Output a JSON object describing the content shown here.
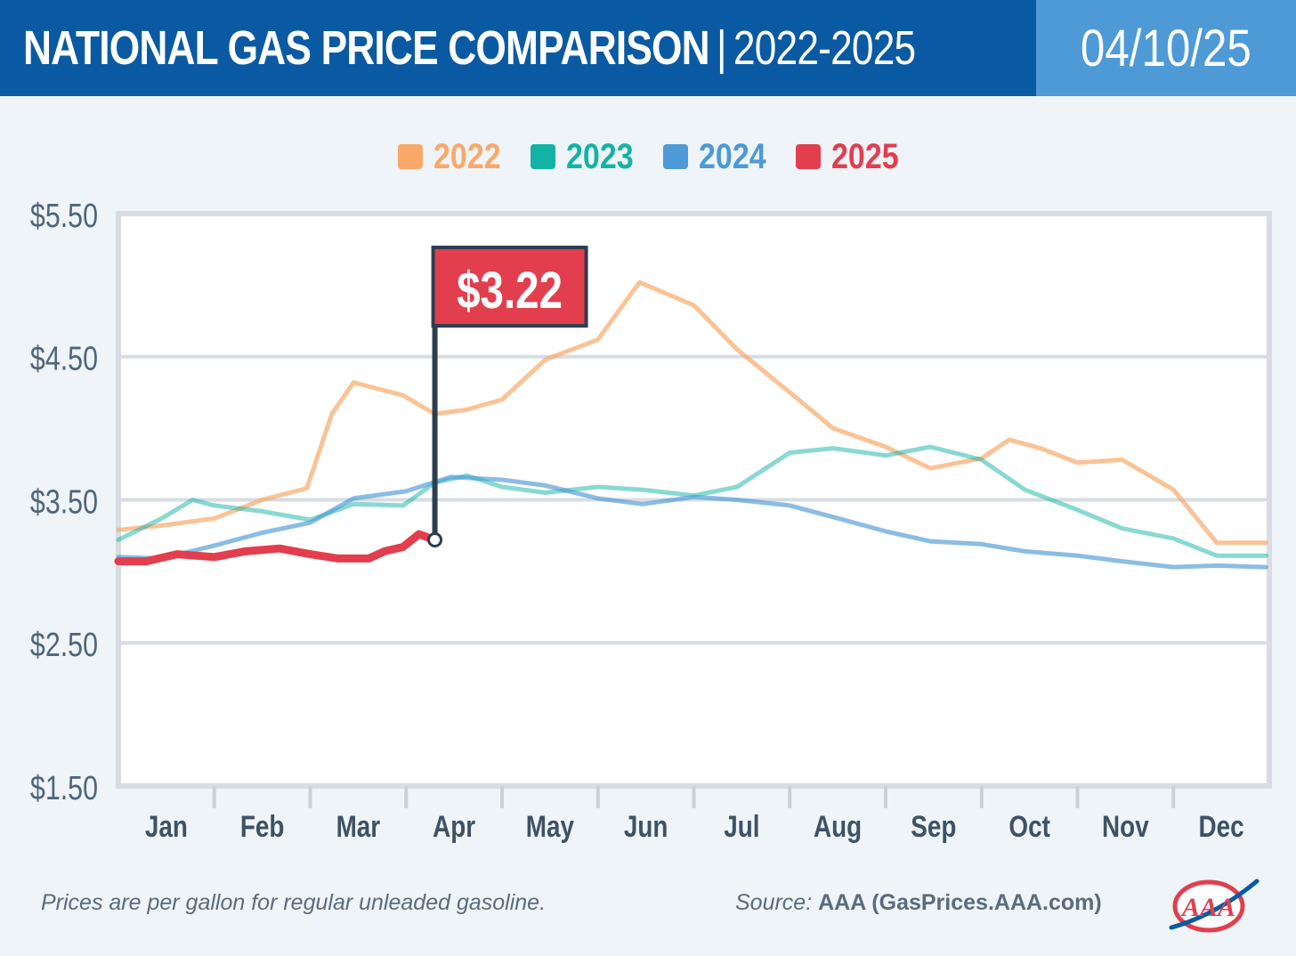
{
  "header": {
    "title_main": "NATIONAL GAS PRICE COMPARISON",
    "title_separator": "|",
    "title_years": "2022-2025",
    "date": "04/10/25"
  },
  "colors": {
    "header_bg": "#0a5aa3",
    "date_bg": "#4d9ad6",
    "page_bg": "#eff4f8",
    "2022": "#f8a96a",
    "2023": "#12b3a5",
    "2024": "#4d9ad6",
    "2025": "#e23e4d",
    "callout_bg": "#e23e4d",
    "flag_pole": "#2c3e50"
  },
  "chart_data": {
    "type": "line",
    "title": "NATIONAL GAS PRICE COMPARISON | 2022-2025",
    "xlabel": "",
    "ylabel": "",
    "x_categories": [
      "Jan",
      "Feb",
      "Mar",
      "Apr",
      "May",
      "Jun",
      "Jul",
      "Aug",
      "Sep",
      "Oct",
      "Nov",
      "Dec"
    ],
    "x_range_months": [
      0,
      12
    ],
    "ylim": [
      1.5,
      5.5
    ],
    "y_ticks": [
      "$5.50",
      "$4.50",
      "$3.50",
      "$2.50",
      "$1.50"
    ],
    "y_tick_values": [
      5.5,
      4.5,
      3.5,
      2.5,
      1.5
    ],
    "grid": true,
    "legend_position": "top-center",
    "series": [
      {
        "name": "2022",
        "x": [
          "Jan 1",
          "Jan 15",
          "Feb 1",
          "Feb 15",
          "Feb 28",
          "Mar 8",
          "Mar 15",
          "Mar 31",
          "Apr 10",
          "Apr 20",
          "May 1",
          "May 15",
          "Jun 1",
          "Jun 14",
          "Jul 1",
          "Jul 15",
          "Aug 1",
          "Aug 15",
          "Sep 1",
          "Sep 15",
          "Oct 1",
          "Oct 10",
          "Oct 20",
          "Nov 1",
          "Nov 15",
          "Dec 1",
          "Dec 15",
          "Dec 31"
        ],
        "values": [
          3.29,
          3.32,
          3.37,
          3.5,
          3.58,
          4.1,
          4.32,
          4.23,
          4.1,
          4.13,
          4.2,
          4.48,
          4.62,
          5.02,
          4.86,
          4.55,
          4.25,
          4.0,
          3.87,
          3.72,
          3.79,
          3.92,
          3.86,
          3.76,
          3.78,
          3.57,
          3.2,
          3.2
        ]
      },
      {
        "name": "2023",
        "x": [
          "Jan 1",
          "Jan 15",
          "Jan 25",
          "Feb 1",
          "Feb 15",
          "Mar 1",
          "Mar 15",
          "Mar 31",
          "Apr 10",
          "Apr 20",
          "May 1",
          "May 15",
          "Jun 1",
          "Jun 15",
          "Jul 1",
          "Jul 15",
          "Aug 1",
          "Aug 15",
          "Sep 1",
          "Sep 15",
          "Oct 1",
          "Oct 15",
          "Nov 1",
          "Nov 15",
          "Dec 1",
          "Dec 15",
          "Dec 31"
        ],
        "values": [
          3.22,
          3.37,
          3.5,
          3.46,
          3.42,
          3.36,
          3.47,
          3.46,
          3.62,
          3.67,
          3.59,
          3.55,
          3.59,
          3.57,
          3.53,
          3.59,
          3.83,
          3.86,
          3.81,
          3.87,
          3.78,
          3.57,
          3.43,
          3.3,
          3.23,
          3.11,
          3.11
        ]
      },
      {
        "name": "2024",
        "x": [
          "Jan 1",
          "Jan 15",
          "Feb 1",
          "Feb 15",
          "Mar 1",
          "Mar 15",
          "Apr 1",
          "Apr 15",
          "May 1",
          "May 15",
          "Jun 1",
          "Jun 15",
          "Jul 1",
          "Jul 15",
          "Aug 1",
          "Aug 15",
          "Sep 1",
          "Sep 15",
          "Oct 1",
          "Oct 15",
          "Nov 1",
          "Nov 15",
          "Dec 1",
          "Dec 15",
          "Dec 31"
        ],
        "values": [
          3.1,
          3.09,
          3.18,
          3.27,
          3.34,
          3.51,
          3.56,
          3.66,
          3.64,
          3.6,
          3.51,
          3.47,
          3.52,
          3.5,
          3.46,
          3.38,
          3.28,
          3.21,
          3.19,
          3.14,
          3.11,
          3.07,
          3.03,
          3.04,
          3.03
        ]
      },
      {
        "name": "2025",
        "x": [
          "Jan 1",
          "Jan 10",
          "Jan 20",
          "Feb 1",
          "Feb 10",
          "Feb 20",
          "Mar 1",
          "Mar 10",
          "Mar 20",
          "Mar 25",
          "Mar 31",
          "Apr 5",
          "Apr 10"
        ],
        "values": [
          3.07,
          3.07,
          3.12,
          3.1,
          3.14,
          3.16,
          3.12,
          3.09,
          3.09,
          3.14,
          3.17,
          3.26,
          3.22
        ]
      }
    ],
    "annotations": [
      {
        "text": "$3.22",
        "series": "2025",
        "x": "Apr 10",
        "value": 3.22
      }
    ]
  },
  "footer": {
    "note": "Prices are per gallon for regular unleaded gasoline.",
    "source_label": "Source:",
    "source_value": "AAA (GasPrices.AAA.com)",
    "logo_text": "AAA"
  }
}
